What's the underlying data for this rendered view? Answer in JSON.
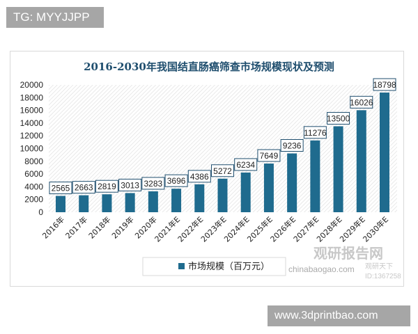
{
  "watermarks": {
    "top_tag": "TG: MYYJJPP",
    "bottom_tag": "www.3dprintbao.com",
    "logo_cn": "观研报告网",
    "logo_en": "chinabaogao.com",
    "logo_sub": "观研天下",
    "logo_id": "ID:1367258"
  },
  "chart_data": {
    "type": "bar",
    "title": "2016-2030年我国结直肠癌筛查市场规模现状及预测",
    "categories": [
      "2016年",
      "2017年",
      "2018年",
      "2019年",
      "2020年",
      "2021年E",
      "2022年E",
      "2023年E",
      "2024年E",
      "2025年E",
      "2026年E",
      "2027年E",
      "2028年E",
      "2029年E",
      "2030年E"
    ],
    "series": [
      {
        "name": "市场规模（百万元）",
        "values": [
          2565,
          2663,
          2819,
          3013,
          3283,
          3696,
          4386,
          5272,
          6234,
          7649,
          9236,
          11276,
          13500,
          16026,
          18798
        ],
        "color": "#1f6b8e"
      }
    ],
    "ylim": [
      0,
      20000
    ],
    "yticks": [
      0,
      2000,
      4000,
      6000,
      8000,
      10000,
      12000,
      14000,
      16000,
      18000,
      20000
    ],
    "grid": true,
    "data_labels": true,
    "legend": "bottom"
  }
}
